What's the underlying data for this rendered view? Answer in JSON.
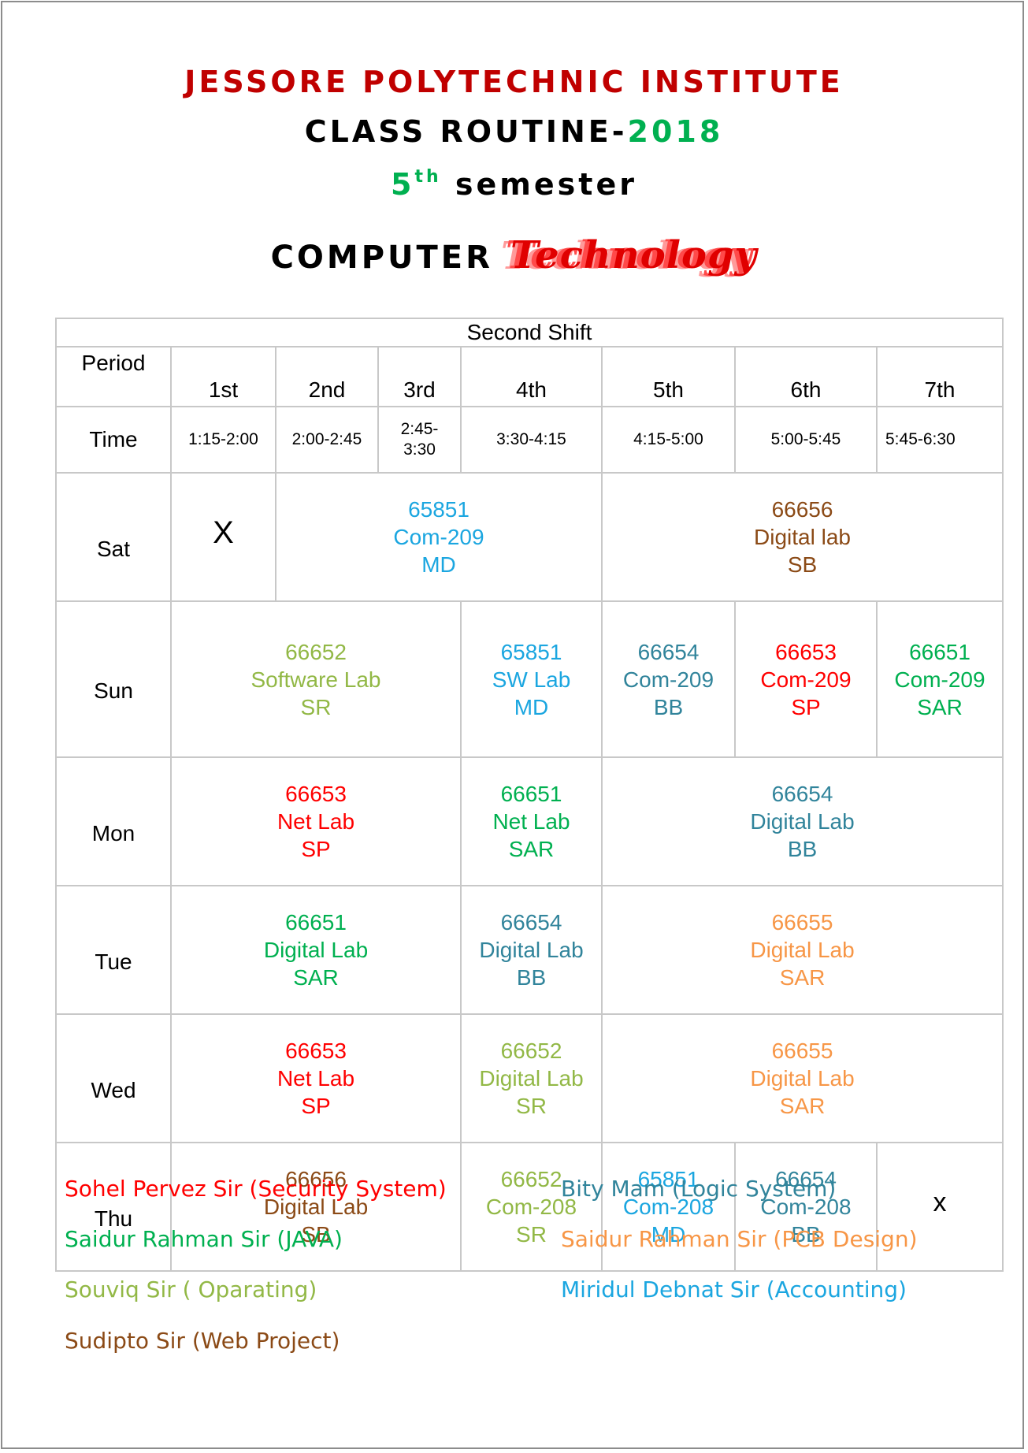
{
  "colors": {
    "red": "#ff0000",
    "green": "#00b050",
    "olive": "#92b846",
    "brown": "#8b4a16",
    "teal": "#31849b",
    "orange": "#f79646",
    "blue": "#1ba6e0"
  },
  "header": {
    "institute": "JESSORE POLYTECHNIC INSTITUTE",
    "routine_prefix": "CLASS ROUTINE-",
    "year": "2018",
    "semester_num": "5",
    "semester_sup": "th",
    "semester_word": "semester",
    "dept_word": "COMPUTER",
    "dept_tech": "Technology"
  },
  "table": {
    "shift": "Second Shift",
    "period_label": "Period",
    "time_label": "Time",
    "periods": [
      "1st",
      "2nd",
      "3rd",
      "4th",
      "5th",
      "6th",
      "7th"
    ],
    "times": [
      "1:15-2:00",
      "2:00-2:45",
      "2:45-3:30",
      "3:30-4:15",
      "4:15-5:00",
      "5:00-5:45",
      "5:45-6:30"
    ],
    "days": {
      "sat": {
        "name": "Sat",
        "off": "X",
        "c1": {
          "code": "65851",
          "room": "Com-209",
          "teacher": "MD"
        },
        "c2": {
          "code": "66656",
          "room": "Digital lab",
          "teacher": "SB"
        }
      },
      "sun": {
        "name": "Sun",
        "c1": {
          "code": "66652",
          "room": "Software Lab",
          "teacher": "SR"
        },
        "c2": {
          "code": "65851",
          "room": "SW Lab",
          "teacher": "MD"
        },
        "c3": {
          "code": "66654",
          "room": "Com-209",
          "teacher": "BB"
        },
        "c4": {
          "code": "66653",
          "room": "Com-209",
          "teacher": "SP"
        },
        "c5": {
          "code": "66651",
          "room": "Com-209",
          "teacher": "SAR"
        }
      },
      "mon": {
        "name": "Mon",
        "c1": {
          "code": "66653",
          "room": "Net Lab",
          "teacher": "SP"
        },
        "c2": {
          "code": "66651",
          "room": "Net Lab",
          "teacher": "SAR"
        },
        "c3": {
          "code": "66654",
          "room": "Digital Lab",
          "teacher": "BB"
        }
      },
      "tue": {
        "name": "Tue",
        "c1": {
          "code": "66651",
          "room": "Digital Lab",
          "teacher": "SAR"
        },
        "c2": {
          "code": "66654",
          "room": "Digital Lab",
          "teacher": "BB"
        },
        "c3": {
          "code": "66655",
          "room": "Digital Lab",
          "teacher": "SAR"
        }
      },
      "wed": {
        "name": "Wed",
        "c1": {
          "code": "66653",
          "room": "Net Lab",
          "teacher": "SP"
        },
        "c2": {
          "code": "66652",
          "room": "Digital Lab",
          "teacher": "SR"
        },
        "c3": {
          "code": "66655",
          "room": "Digital Lab",
          "teacher": "SAR"
        }
      },
      "thu": {
        "name": "Thu",
        "off": "x",
        "c1": {
          "code": "66656",
          "room": "Digital Lab",
          "teacher": "SB"
        },
        "c2": {
          "code": "66652",
          "room": "Com-208",
          "teacher": "SR"
        },
        "c3": {
          "code": "65851",
          "room": "Com-208",
          "teacher": "MD"
        },
        "c4": {
          "code": "66654",
          "room": "Com-208",
          "teacher": "BB"
        }
      }
    }
  },
  "legend": [
    "Sohel Pervez Sir (Security System)",
    "Saidur Rahman Sir (JAVA)",
    "Souviq Sir ( Oparating)",
    "Sudipto Sir (Web Project)",
    "Bity Mam (Logic System)",
    "Saidur Rahman Sir (PCB Design)",
    "Miridul Debnat Sir (Accounting)"
  ]
}
